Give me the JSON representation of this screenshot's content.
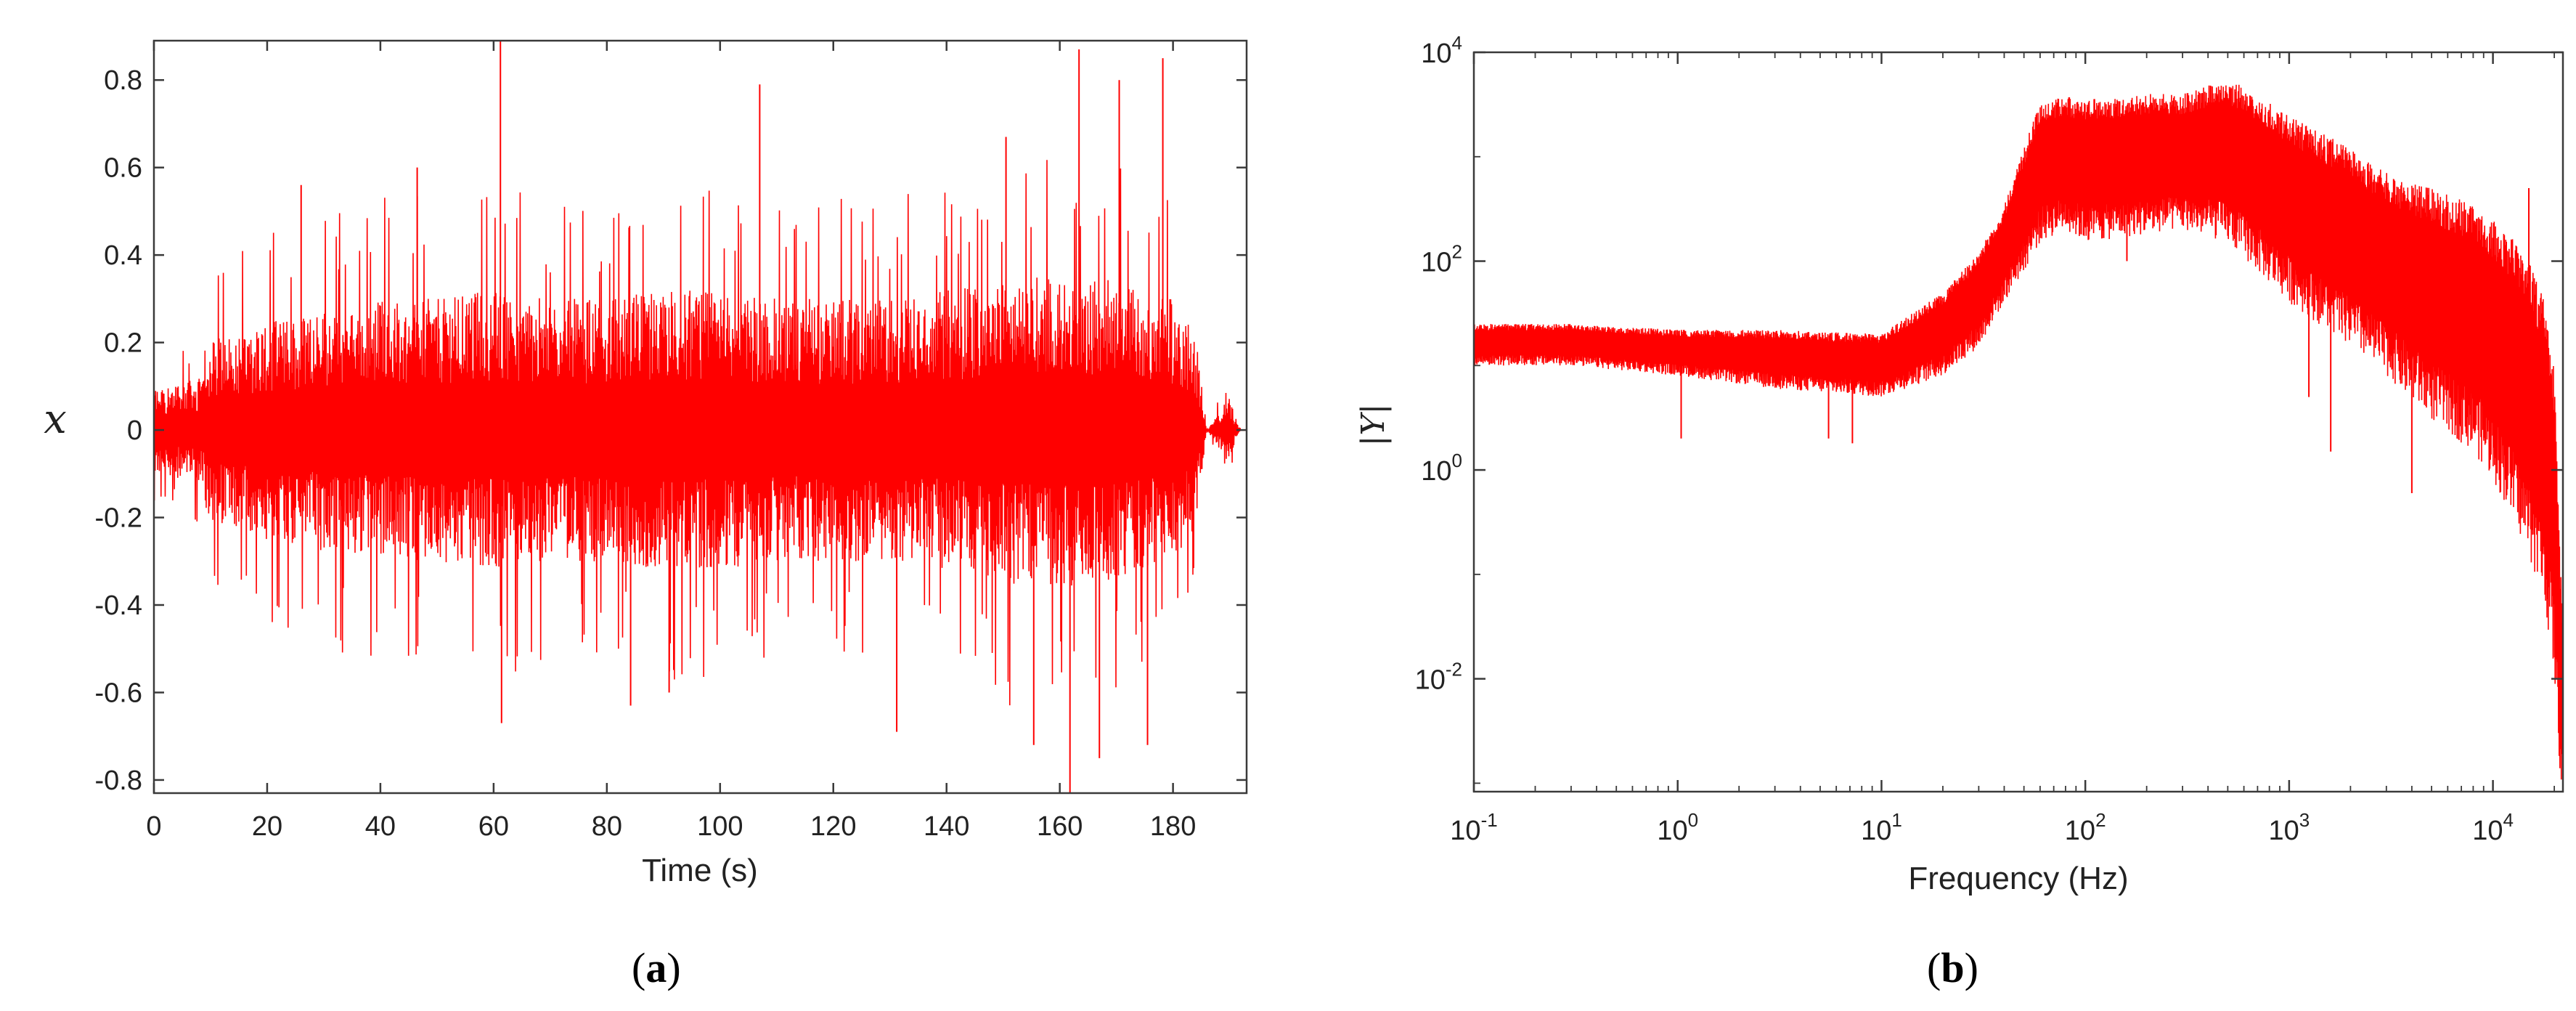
{
  "colors": {
    "signal": "#ff0000",
    "axis": "#3a3a3a"
  },
  "panels": {
    "a": {
      "label_open": "(",
      "label_letter": "a",
      "label_close": ")"
    },
    "b": {
      "label_open": "(",
      "label_letter": "b",
      "label_close": ")"
    }
  },
  "chart_data": [
    {
      "type": "line",
      "panel": "a",
      "xlabel": "Time (s)",
      "ylabel": "x",
      "xlim": [
        0,
        193
      ],
      "ylim": [
        -0.83,
        0.89
      ],
      "x_ticks": [
        0,
        20,
        40,
        60,
        80,
        100,
        120,
        140,
        160,
        180
      ],
      "y_ticks": [
        -0.8,
        -0.6,
        -0.4,
        -0.2,
        0,
        0.2,
        0.4,
        0.6,
        0.8
      ],
      "y_tick_labels": [
        "-0.8",
        "-0.6",
        "-0.4",
        "-0.2",
        "0",
        "0.2",
        "0.4",
        "0.6",
        "0.8"
      ],
      "grid": false,
      "series": [
        {
          "color": "#ff0000",
          "envelope": {
            "t": [
              0,
              8.9,
              9,
              20,
              30,
              40,
              50,
              60,
              70,
              80,
              90,
              100,
              110,
              120,
              130,
              140,
              150,
              160,
              170,
              180,
              184,
              186,
              188,
              190,
              191,
              192
            ],
            "amplitude": [
              0.1,
              0.12,
              0.2,
              0.25,
              0.28,
              0.3,
              0.3,
              0.32,
              0.3,
              0.3,
              0.32,
              0.32,
              0.3,
              0.3,
              0.3,
              0.32,
              0.35,
              0.36,
              0.34,
              0.3,
              0.22,
              0.0,
              0.04,
              0.08,
              0.02,
              0.0
            ]
          },
          "peaks": [
            {
              "x": 61.2,
              "y": 0.89
            },
            {
              "x": 61.4,
              "y": -0.67
            },
            {
              "x": 84.2,
              "y": -0.63
            },
            {
              "x": 91,
              "y": -0.6
            },
            {
              "x": 131.2,
              "y": -0.69
            },
            {
              "x": 150.5,
              "y": 0.67
            },
            {
              "x": 155.4,
              "y": -0.72
            },
            {
              "x": 161.8,
              "y": -0.83
            },
            {
              "x": 163.4,
              "y": 0.87
            },
            {
              "x": 167,
              "y": -0.75
            },
            {
              "x": 170.5,
              "y": 0.8
            },
            {
              "x": 178.2,
              "y": 0.85
            },
            {
              "x": 175.5,
              "y": -0.72
            },
            {
              "x": 107,
              "y": 0.79
            },
            {
              "x": 46.5,
              "y": 0.6
            },
            {
              "x": 26,
              "y": 0.56
            },
            {
              "x": 10.5,
              "y": 0.2
            }
          ]
        }
      ]
    },
    {
      "type": "line",
      "panel": "b",
      "xlabel": "Frequency (Hz)",
      "ylabel": "|Y|",
      "x_scale": "log",
      "y_scale": "log",
      "xlim": [
        0.1,
        22050
      ],
      "ylim": [
        0.00083,
        10000
      ],
      "x_ticks": [
        0.1,
        1,
        10,
        100,
        1000,
        10000
      ],
      "x_tick_labels": [
        {
          "base": "10",
          "exp": "-1"
        },
        {
          "base": "10",
          "exp": "0"
        },
        {
          "base": "10",
          "exp": "1"
        },
        {
          "base": "10",
          "exp": "2"
        },
        {
          "base": "10",
          "exp": "3"
        },
        {
          "base": "10",
          "exp": "4"
        }
      ],
      "y_ticks": [
        0.01,
        1,
        100,
        10000
      ],
      "y_tick_labels": [
        {
          "base": "10",
          "exp": "-2"
        },
        {
          "base": "10",
          "exp": "0"
        },
        {
          "base": "10",
          "exp": "2"
        },
        {
          "base": "10",
          "exp": "4"
        }
      ],
      "grid": false,
      "series": [
        {
          "color": "#ff0000",
          "upper": {
            "f": [
              0.1,
              0.3,
              1,
              3,
              10,
              20,
              30,
              40,
              50,
              60,
              80,
              100,
              200,
              300,
              500,
              700,
              1000,
              2000,
              3000,
              5000,
              8000,
              10000,
              12000,
              15000,
              18000,
              20000,
              21500,
              22050
            ],
            "y": [
              25,
              25,
              22,
              22,
              20,
              50,
              120,
              350,
              1200,
              3500,
              3800,
              3500,
              4000,
              4000,
              5500,
              4000,
              2500,
              1200,
              700,
              500,
              350,
              250,
              180,
              100,
              40,
              10,
              0.1,
              0.05
            ]
          },
          "lower": {
            "f": [
              0.1,
              0.3,
              1,
              3,
              10,
              20,
              30,
              40,
              50,
              60,
              80,
              100,
              200,
              300,
              500,
              700,
              1000,
              2000,
              3000,
              5000,
              8000,
              10000,
              12000,
              15000,
              18000,
              20000,
              21500,
              22050
            ],
            "y": [
              10,
              10,
              8,
              6,
              5,
              8,
              15,
              40,
              80,
              150,
              200,
              150,
              180,
              200,
              150,
              80,
              40,
              15,
              8,
              3,
              1.5,
              0.8,
              0.4,
              0.15,
              0.05,
              0.01,
              0.001,
              0.00083
            ]
          },
          "spikes": [
            {
              "f": 1.04,
              "y": 2
            },
            {
              "f": 5.5,
              "y": 2
            },
            {
              "f": 7.2,
              "y": 1.8
            },
            {
              "f": 160,
              "y": 100
            },
            {
              "f": 800,
              "y": 100
            },
            {
              "f": 1250,
              "y": 5
            },
            {
              "f": 1600,
              "y": 1.5
            },
            {
              "f": 15000,
              "y": 500
            },
            {
              "f": 4000,
              "y": 0.6
            }
          ]
        }
      ]
    }
  ]
}
